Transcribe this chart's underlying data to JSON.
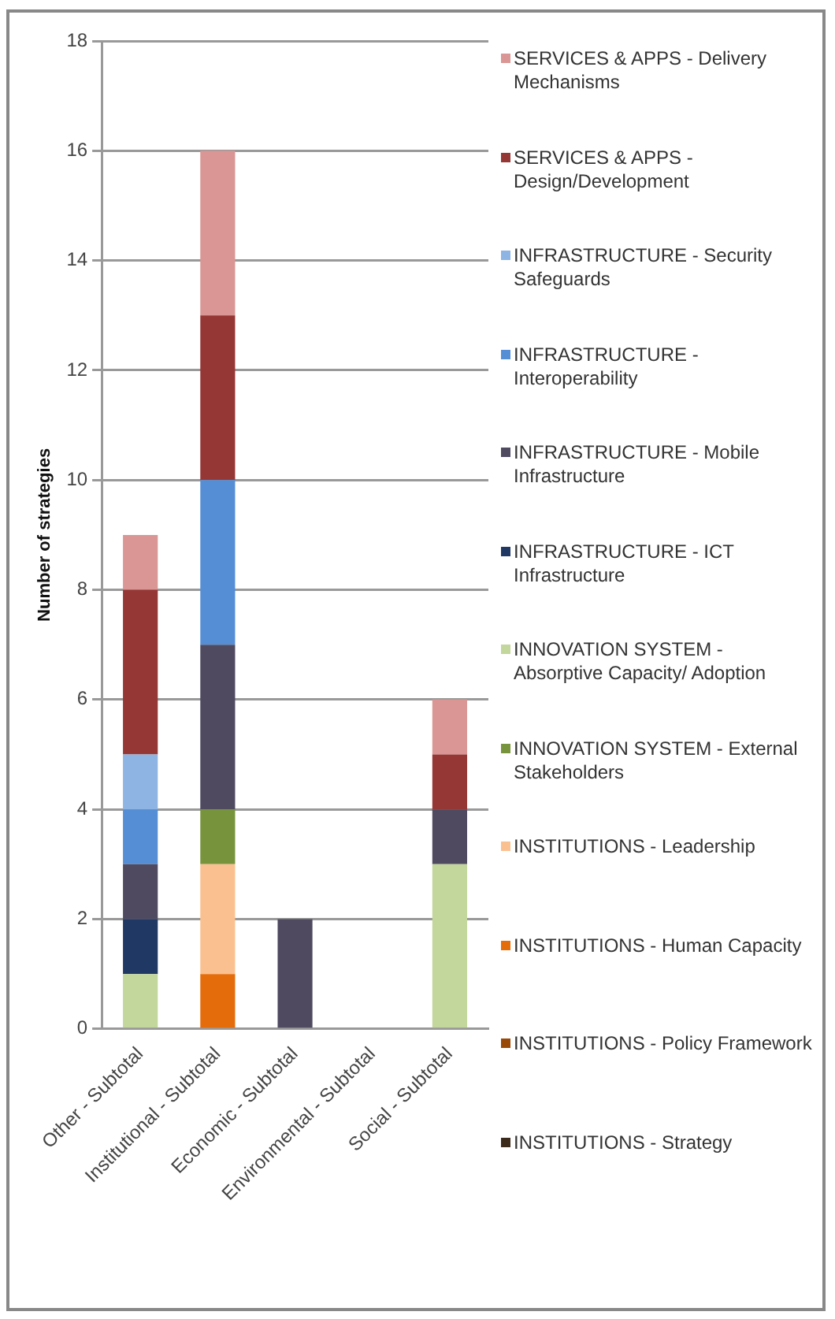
{
  "chart_data": {
    "type": "bar",
    "stacked": true,
    "ylabel": "Number of strategies",
    "categories": [
      "Other - Subtotal",
      "Institutional - Subtotal",
      "Economic - Subtotal",
      "Environmental - Subtotal",
      "Social - Subtotal"
    ],
    "series": [
      {
        "name": "INSTITUTIONS - Strategy",
        "color": "#3b2a1a",
        "values": [
          0,
          0,
          0,
          0,
          0
        ]
      },
      {
        "name": "INSTITUTIONS - Policy Framework",
        "color": "#984807",
        "values": [
          0,
          0,
          0,
          0,
          0
        ]
      },
      {
        "name": "INSTITUTIONS - Human Capacity",
        "color": "#e46c0a",
        "values": [
          0,
          1,
          0,
          0,
          0
        ]
      },
      {
        "name": "INSTITUTIONS - Leadership",
        "color": "#fac090",
        "values": [
          0,
          2,
          0,
          0,
          0
        ]
      },
      {
        "name": "INNOVATION SYSTEM - External Stakeholders",
        "color": "#77933c",
        "values": [
          0,
          1,
          0,
          0,
          0
        ]
      },
      {
        "name": "INNOVATION SYSTEM - Absorptive Capacity/ Adoption",
        "color": "#c3d69b",
        "values": [
          1,
          0,
          0,
          0,
          3
        ]
      },
      {
        "name": "INFRASTRUCTURE - ICT Infrastructure",
        "color": "#1f3864",
        "values": [
          1,
          0,
          0,
          0,
          0
        ]
      },
      {
        "name": "INFRASTRUCTURE - Mobile Infrastructure",
        "color": "#4f4a60",
        "values": [
          1,
          3,
          2,
          0,
          1
        ]
      },
      {
        "name": "INFRASTRUCTURE - Interoperability",
        "color": "#558ed5",
        "values": [
          1,
          3,
          0,
          0,
          0
        ]
      },
      {
        "name": "INFRASTRUCTURE - Security Safeguards",
        "color": "#8db4e2",
        "values": [
          1,
          0,
          0,
          0,
          0
        ]
      },
      {
        "name": "SERVICES & APPS - Design/Development",
        "color": "#953735",
        "values": [
          3,
          3,
          0,
          0,
          1
        ]
      },
      {
        "name": "SERVICES & APPS - Delivery Mechanisms",
        "color": "#d99694",
        "values": [
          1,
          3,
          0,
          0,
          1
        ]
      }
    ],
    "ylim": [
      0,
      18
    ],
    "yticks": [
      0,
      2,
      4,
      6,
      8,
      10,
      12,
      14,
      16,
      18
    ],
    "grid": "y",
    "legend": "right"
  }
}
